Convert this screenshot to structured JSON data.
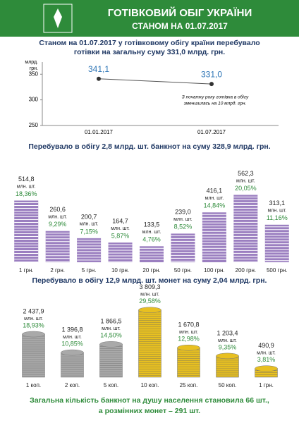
{
  "header": {
    "title": "ГОТІВКОВИЙ ОБІГ УКРАЇНИ",
    "subtitle": "СТАНОМ НА 01.07.2017"
  },
  "chart_data": [
    {
      "type": "line",
      "title": [
        "Станом  на 01.07.2017 у готівковому обігу країни перебувало",
        "готівки на загальну суму 331,0 млрд. грн."
      ],
      "y_label": [
        "млрд.",
        "грн."
      ],
      "categories": [
        "01.01.2017",
        "01.07.2017"
      ],
      "values": [
        341.1,
        331.0
      ],
      "value_labels": [
        "341,1",
        "331,0"
      ],
      "ylim": [
        250,
        360
      ],
      "yticks": [
        250,
        300,
        350
      ],
      "annotation": [
        "З початку року готівка в обігу",
        "зменшилась на 10 млрд. грн."
      ],
      "color": "#555555"
    },
    {
      "type": "banknotes",
      "title": "Перебувало в обігу 2,8 млрд. шт. банкнот на суму 328,9 млрд. грн.",
      "unit": "млн. шт.",
      "categories": [
        "1 грн.",
        "2 грн.",
        "5 грн.",
        "10 грн.",
        "20 грн.",
        "50 грн.",
        "100 грн.",
        "200 грн.",
        "500 грн."
      ],
      "values": [
        514.8,
        260.6,
        200.7,
        164.7,
        133.5,
        239.0,
        416.1,
        562.3,
        313.1
      ],
      "value_labels": [
        "514,8",
        "260,6",
        "200,7",
        "164,7",
        "133,5",
        "239,0",
        "416,1",
        "562,3",
        "313,1"
      ],
      "shares": [
        18.36,
        9.29,
        7.15,
        5.87,
        4.76,
        8.52,
        14.84,
        20.05,
        11.16
      ],
      "share_labels": [
        "18,36%",
        "9,29%",
        "7,15%",
        "5,87%",
        "4,76%",
        "8,52%",
        "14,84%",
        "20,05%",
        "11,16%"
      ],
      "color": "#9b7fc0"
    },
    {
      "type": "coins",
      "title": "Перебувало в обігу 12,9 млрд. шт. монет на суму 2,04 млрд. грн.",
      "unit": "млн. шт.",
      "categories": [
        "1 коп.",
        "2 коп.",
        "5 коп.",
        "10 коп.",
        "25 коп.",
        "50 коп.",
        "1 грн."
      ],
      "values": [
        2437.9,
        1396.8,
        1866.5,
        3809.3,
        1670.8,
        1203.4,
        490.9
      ],
      "value_labels": [
        "2 437,9",
        "1 396,8",
        "1 866,5",
        "3 809,3",
        "1 670,8",
        "1 203,4",
        "490,9"
      ],
      "shares": [
        18.93,
        10.85,
        14.5,
        29.58,
        12.98,
        9.35,
        3.81
      ],
      "share_labels": [
        "18,93%",
        "10,85%",
        "14,50%",
        "29,58%",
        "12,98%",
        "9,35%",
        "3,81%"
      ],
      "colors": [
        "#a9a9a9",
        "#a9a9a9",
        "#a9a9a9",
        "#e8c020",
        "#e8c020",
        "#e8c020",
        "#e8c020"
      ]
    }
  ],
  "footer": [
    "Загальна кількість банкнот на душу населення становила 66 шт.,",
    "а розмінних монет – 291 шт."
  ]
}
